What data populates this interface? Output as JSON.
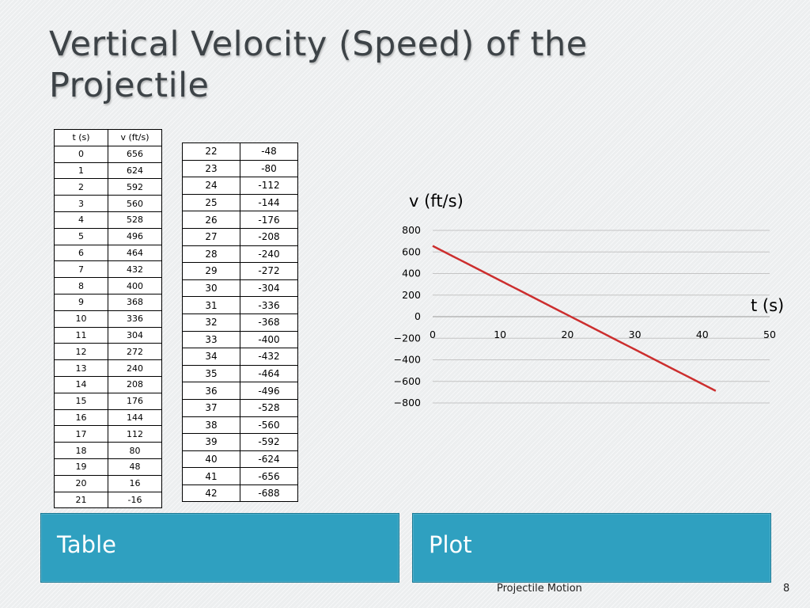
{
  "slide": {
    "title_line1": "Vertical Velocity (Speed) of the",
    "title_line2": "Projectile",
    "footer_title": "Projectile Motion",
    "page_number": "8"
  },
  "table1": {
    "headers": [
      "t (s)",
      "v (ft/s)"
    ],
    "rows": [
      [
        "0",
        "656"
      ],
      [
        "1",
        "624"
      ],
      [
        "2",
        "592"
      ],
      [
        "3",
        "560"
      ],
      [
        "4",
        "528"
      ],
      [
        "5",
        "496"
      ],
      [
        "6",
        "464"
      ],
      [
        "7",
        "432"
      ],
      [
        "8",
        "400"
      ],
      [
        "9",
        "368"
      ],
      [
        "10",
        "336"
      ],
      [
        "11",
        "304"
      ],
      [
        "12",
        "272"
      ],
      [
        "13",
        "240"
      ],
      [
        "14",
        "208"
      ],
      [
        "15",
        "176"
      ],
      [
        "16",
        "144"
      ],
      [
        "17",
        "112"
      ],
      [
        "18",
        "80"
      ],
      [
        "19",
        "48"
      ],
      [
        "20",
        "16"
      ],
      [
        "21",
        "-16"
      ]
    ]
  },
  "table2": {
    "rows": [
      [
        "22",
        "-48"
      ],
      [
        "23",
        "-80"
      ],
      [
        "24",
        "-112"
      ],
      [
        "25",
        "-144"
      ],
      [
        "26",
        "-176"
      ],
      [
        "27",
        "-208"
      ],
      [
        "28",
        "-240"
      ],
      [
        "29",
        "-272"
      ],
      [
        "30",
        "-304"
      ],
      [
        "31",
        "-336"
      ],
      [
        "32",
        "-368"
      ],
      [
        "33",
        "-400"
      ],
      [
        "34",
        "-432"
      ],
      [
        "35",
        "-464"
      ],
      [
        "36",
        "-496"
      ],
      [
        "37",
        "-528"
      ],
      [
        "38",
        "-560"
      ],
      [
        "39",
        "-592"
      ],
      [
        "40",
        "-624"
      ],
      [
        "41",
        "-656"
      ],
      [
        "42",
        "-688"
      ]
    ]
  },
  "tabs": {
    "table_label": "Table",
    "plot_label": "Plot"
  },
  "chart_data": {
    "type": "line",
    "title": "",
    "ylabel": "v (ft/s)",
    "xlabel": "t (s)",
    "xlim": [
      0,
      50
    ],
    "ylim": [
      -800,
      800
    ],
    "xticks": [
      "0",
      "10",
      "20",
      "30",
      "40",
      "50"
    ],
    "yticks": [
      "800",
      "600",
      "400",
      "200",
      "0",
      "−200",
      "−400",
      "−600",
      "−800"
    ],
    "grid": true,
    "line_color": "#cc2e2e",
    "series": [
      {
        "x": [
          0,
          1,
          2,
          3,
          4,
          5,
          6,
          7,
          8,
          9,
          10,
          11,
          12,
          13,
          14,
          15,
          16,
          17,
          18,
          19,
          20,
          21,
          22,
          23,
          24,
          25,
          26,
          27,
          28,
          29,
          30,
          31,
          32,
          33,
          34,
          35,
          36,
          37,
          38,
          39,
          40,
          41,
          42
        ],
        "values": [
          656,
          624,
          592,
          560,
          528,
          496,
          464,
          432,
          400,
          368,
          336,
          304,
          272,
          240,
          208,
          176,
          144,
          112,
          80,
          48,
          16,
          -16,
          -48,
          -80,
          -112,
          -144,
          -176,
          -208,
          -240,
          -272,
          -304,
          -336,
          -368,
          -400,
          -432,
          -464,
          -496,
          -528,
          -560,
          -592,
          -624,
          -656,
          -688
        ]
      }
    ]
  }
}
